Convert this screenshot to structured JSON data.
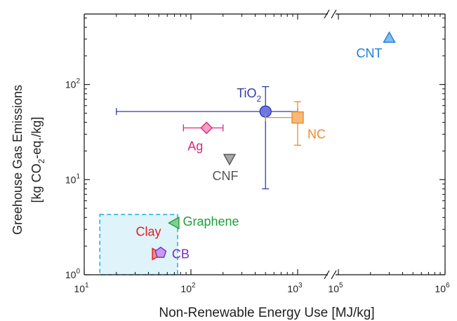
{
  "chart_data": {
    "type": "scatter",
    "title": "",
    "xlabel": "Non-Renewable Energy Use [MJ/kg]",
    "ylabel_line1": "Greehouse Gas Emissions",
    "ylabel_line2": "[kg CO2-eq./kg]",
    "xscale": "log (broken axis)",
    "yscale": "log",
    "xlim": [
      10,
      1000000
    ],
    "ylim": [
      1,
      500
    ],
    "axis_break": "between 1000 and 100000",
    "x_tick_labels": [
      {
        "base": "10",
        "exp": "1",
        "value": 10
      },
      {
        "base": "10",
        "exp": "2",
        "value": 100
      },
      {
        "base": "10",
        "exp": "3",
        "value": 1000
      },
      {
        "base": "10",
        "exp": "5",
        "value": 100000
      },
      {
        "base": "10",
        "exp": "6",
        "value": 1000000
      }
    ],
    "y_tick_labels": [
      {
        "base": "10",
        "exp": "0",
        "value": 1
      },
      {
        "base": "10",
        "exp": "1",
        "value": 10
      },
      {
        "base": "10",
        "exp": "2",
        "value": 100
      }
    ],
    "highlight_region": {
      "x": [
        14,
        75
      ],
      "y": [
        1,
        4.3
      ],
      "fill": "#dff3fb",
      "stroke": "#29b6cf"
    },
    "points": [
      {
        "label": "CNT",
        "x": 300000,
        "y": 310,
        "marker": "triangle-up",
        "color": "#1e7fd6",
        "fill": "#7fbef0"
      },
      {
        "label": "TiO",
        "sub": "2",
        "x": 500,
        "y": 52,
        "marker": "circle",
        "color": "#2f3db0",
        "fill": "#6e78e0",
        "xerr": [
          20,
          1000
        ],
        "yerr": [
          8,
          95
        ]
      },
      {
        "label": "NC",
        "x": 1000,
        "y": 45,
        "marker": "square",
        "color": "#f08a24",
        "fill": "#f7b97a",
        "xerr": [
          500,
          1700
        ],
        "yerr": [
          23,
          66
        ]
      },
      {
        "label": "Ag",
        "x": 140,
        "y": 35,
        "marker": "diamond",
        "color": "#e0287a",
        "fill": "#f1a0c6",
        "xerr": [
          85,
          200
        ]
      },
      {
        "label": "CNF",
        "x": 230,
        "y": 16.5,
        "marker": "triangle-down",
        "color": "#555555",
        "fill": "#a8a8a8"
      },
      {
        "label": "Graphene",
        "x": 70,
        "y": 3.5,
        "marker": "triangle-left",
        "color": "#1f9e3a",
        "fill": "#7fd08f"
      },
      {
        "label": "Clay",
        "x": 48,
        "y": 1.65,
        "marker": "triangle-right",
        "color": "#e41c1c",
        "fill": "#f48a8a"
      },
      {
        "label": "CB",
        "x": 52,
        "y": 1.7,
        "marker": "pentagon",
        "color": "#7b2cbf",
        "fill": "#c59af0"
      }
    ]
  }
}
